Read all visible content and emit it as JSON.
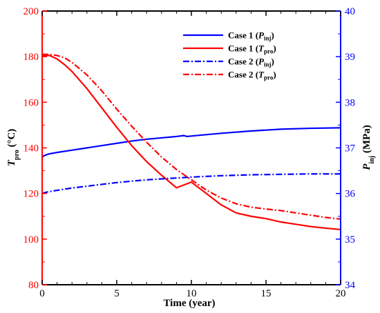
{
  "chart_data": {
    "type": "line",
    "title": "",
    "xlabel": "Time (year)",
    "ylabel_left": {
      "main": "T",
      "sub": "pro",
      "unit": " (°C)"
    },
    "ylabel_right": {
      "main": "P",
      "sub": "inj",
      "unit": " (MPa)"
    },
    "xlim": [
      0,
      20
    ],
    "ylim_left": [
      80,
      200
    ],
    "ylim_right": [
      34,
      40
    ],
    "xticks": [
      "0",
      "5",
      "10",
      "15",
      "20"
    ],
    "yticks_left": [
      "80",
      "100",
      "120",
      "140",
      "160",
      "180",
      "200"
    ],
    "yticks_right": [
      "34",
      "35",
      "36",
      "37",
      "38",
      "39",
      "40"
    ],
    "grid": false,
    "legend_position": "top-right",
    "colors": {
      "left_axis": "#ff0000",
      "right_axis": "#0000ff",
      "x_axis": "#000000"
    },
    "series": [
      {
        "name": "Case 1 (Pinj)",
        "legend": {
          "prefix": "Case 1 (",
          "main": "P",
          "sub": "inj",
          "suffix": ")"
        },
        "axis": "right",
        "color": "#0000ff",
        "dash": "solid",
        "x": [
          0,
          0.2,
          0.5,
          1,
          2,
          3,
          4,
          5,
          6,
          7,
          8,
          9,
          9.5,
          9.7,
          10,
          12,
          14,
          16,
          18,
          20
        ],
        "y": [
          36.8,
          36.84,
          36.87,
          36.9,
          36.95,
          37.0,
          37.05,
          37.1,
          37.15,
          37.19,
          37.22,
          37.25,
          37.27,
          37.25,
          37.26,
          37.32,
          37.37,
          37.41,
          37.43,
          37.44
        ]
      },
      {
        "name": "Case 1 (Tpro)",
        "legend": {
          "prefix": "Case 1 (",
          "main": "T",
          "sub": "pro",
          "suffix": ")"
        },
        "axis": "left",
        "color": "#ff0000",
        "dash": "solid",
        "x": [
          0,
          0.5,
          1,
          1.5,
          2,
          3,
          4,
          5,
          6,
          7,
          8,
          9,
          10,
          11,
          12,
          13,
          14,
          15,
          16,
          17,
          18,
          19,
          20
        ],
        "y": [
          180.5,
          180.5,
          179,
          176.5,
          173.5,
          166,
          157.5,
          149,
          141,
          134,
          128,
          122.5,
          125,
          120,
          115,
          111.5,
          110,
          109,
          107.5,
          106.5,
          105.5,
          104.8,
          104.2
        ]
      },
      {
        "name": "Case 2 (Pinj)",
        "legend": {
          "prefix": "Case 2 (",
          "main": "P",
          "sub": "inj",
          "suffix": ")"
        },
        "axis": "right",
        "color": "#0000ff",
        "dash": "dashdot",
        "x": [
          0,
          0.3,
          1,
          2,
          3,
          4,
          5,
          6,
          7,
          8,
          9,
          10,
          12,
          14,
          16,
          18,
          20
        ],
        "y": [
          36.0,
          36.03,
          36.07,
          36.12,
          36.16,
          36.2,
          36.24,
          36.27,
          36.3,
          36.32,
          36.34,
          36.36,
          36.39,
          36.41,
          36.42,
          36.43,
          36.43
        ]
      },
      {
        "name": "Case 2 (Tpro)",
        "legend": {
          "prefix": "Case 2 (",
          "main": "T",
          "sub": "pro",
          "suffix": ")"
        },
        "axis": "left",
        "color": "#ff0000",
        "dash": "dashdot",
        "x": [
          0,
          0.5,
          1,
          1.5,
          2,
          3,
          4,
          5,
          6,
          7,
          8,
          9,
          10,
          11,
          12,
          13,
          14,
          15,
          16,
          17,
          18,
          19,
          20
        ],
        "y": [
          181,
          181,
          180.5,
          179.5,
          177.5,
          172,
          165,
          157,
          149.5,
          142.5,
          136,
          130.5,
          126,
          121.5,
          118,
          115.5,
          114,
          113.2,
          112.5,
          111.5,
          110.5,
          109.5,
          108.8
        ]
      }
    ]
  }
}
